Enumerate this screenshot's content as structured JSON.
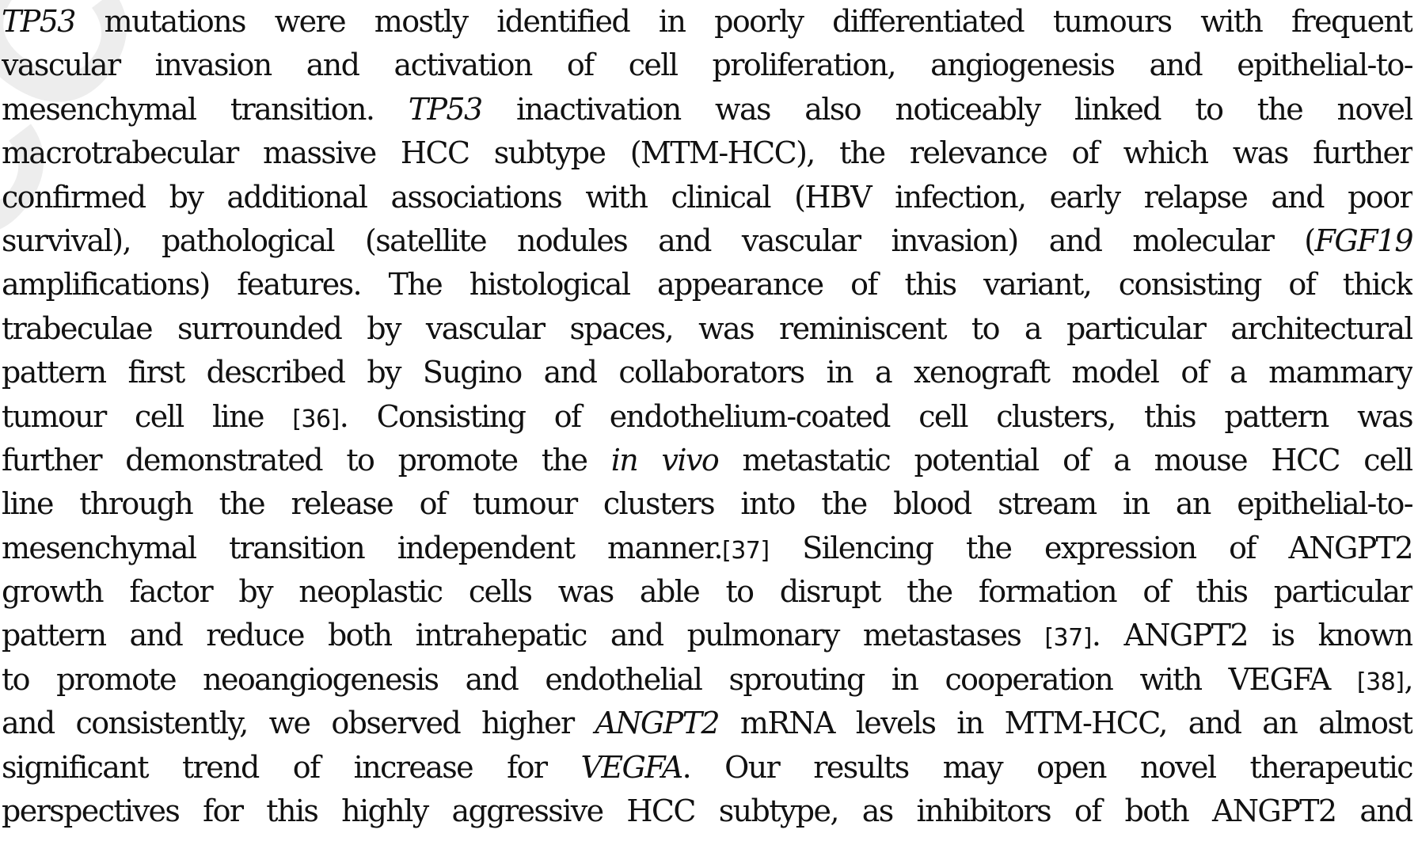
{
  "watermark": {
    "text": "ACCEPTED",
    "color": "#bebebe"
  },
  "paragraph": {
    "lines": [
      [
        "<i>TP53</i> mutations were mostly identified in poorly differentiated tumours with frequent"
      ],
      [
        "vascular invasion and activation of cell proliferation, angiogenesis and epithelial-to-"
      ],
      [
        "mesenchymal transition. <i>TP53</i> inactivation was also noticeably linked to the novel"
      ],
      [
        "macrotrabecular massive HCC subtype (MTM-HCC), the relevance of which was further"
      ],
      [
        "confirmed by additional associations with clinical (HBV infection, early relapse and poor"
      ],
      [
        "survival), pathological (satellite nodules and vascular invasion) and molecular (<i>FGF19</i>"
      ],
      [
        "amplifications) features. The histological appearance of this variant, consisting of thick"
      ],
      [
        "trabeculae surrounded by vascular spaces, was reminiscent to a particular architectural"
      ],
      [
        "pattern first described by Sugino and collaborators in a xenograft model of a mammary"
      ],
      [
        "tumour cell line <span class=\"ref\">[36]</span>. Consisting of endothelium-coated cell clusters, this pattern was"
      ],
      [
        "further demonstrated to promote the <i>in vivo</i> metastatic potential of a mouse HCC cell"
      ],
      [
        "line through the release of tumour clusters into the blood stream in an epithelial-to-"
      ],
      [
        "mesenchymal transition independent manner.<span class=\"ref\">[37]</span> Silencing the expression of ANGPT2"
      ],
      [
        "growth factor by neoplastic cells was able to disrupt the formation of this particular"
      ],
      [
        "pattern and reduce both intrahepatic and pulmonary metastases <span class=\"ref\">[37]</span>. ANGPT2 is known"
      ],
      [
        "to promote neoangiogenesis and endothelial sprouting in cooperation with VEGFA <span class=\"ref\">[38]</span>,"
      ],
      [
        "and consistently, we observed higher <i>ANGPT2</i> mRNA levels in MTM-HCC, and an almost"
      ],
      [
        "significant trend of increase for <i>VEGFA</i>. Our results may open novel therapeutic"
      ],
      [
        "perspectives for this highly aggressive HCC subtype, as inhibitors of both ANGPT2 and"
      ]
    ]
  }
}
